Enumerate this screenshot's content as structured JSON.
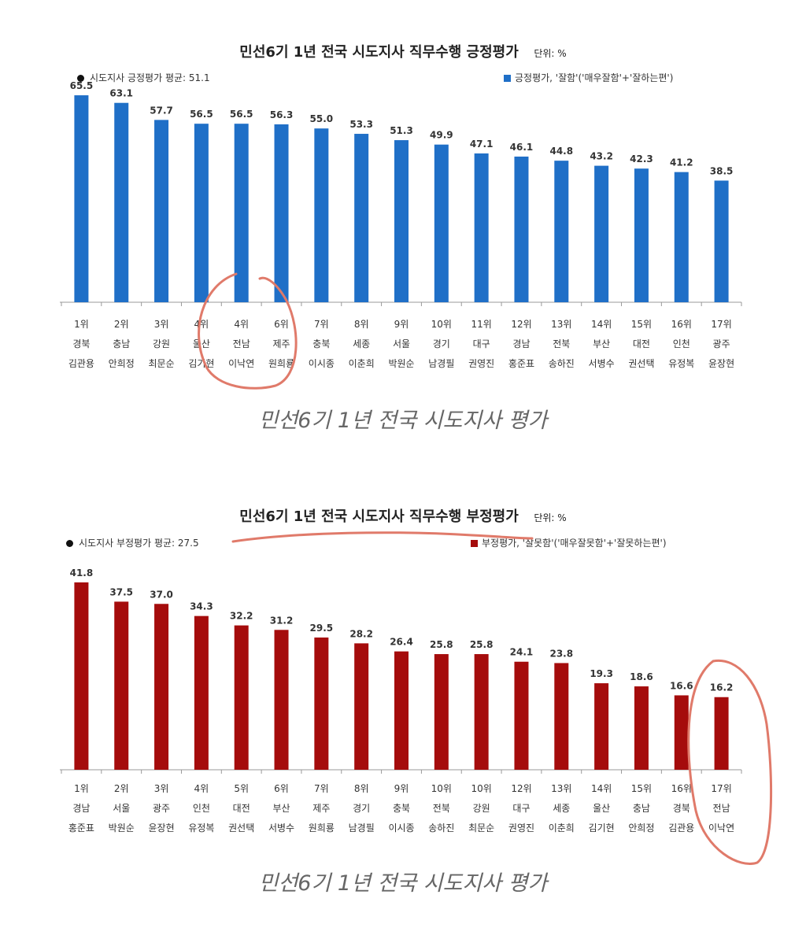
{
  "charts": [
    {
      "title": "민선6기 1년 전국 시도지사 직무수행 긍정평가",
      "unit": "단위: %",
      "legend_avg": "시도지사 긍정평가 평균: 51.1",
      "legend_series": "긍정평가, '잘함'('매우잘함'+'잘하는편')",
      "caption": "민선6기 1년 전국 시도지사 평가",
      "color": "#1f6fc7"
    },
    {
      "title": "민선6기 1년 전국 시도지사 직무수행 부정평가",
      "unit": "단위: %",
      "legend_avg": "시도지사 부정평가 평균: 27.5",
      "legend_series": "부정평가, '잘못함'('매우잘못함'+'잘못하는편')",
      "caption": "민선6기 1년 전국 시도지사 평가",
      "color": "#a50c0c"
    }
  ],
  "chart_data": [
    {
      "type": "bar",
      "title": "민선6기 1년 전국 시도지사 직무수행 긍정평가",
      "ylim": [
        0,
        70
      ],
      "legend": "top",
      "values": [
        65.5,
        63.1,
        57.7,
        56.5,
        56.5,
        56.3,
        55.0,
        53.3,
        51.3,
        49.9,
        47.1,
        46.1,
        44.8,
        43.2,
        42.3,
        41.2,
        38.5
      ],
      "value_labels": [
        "65.5",
        "63.1",
        "57.7",
        "56.5",
        "56.5",
        "56.3",
        "55.0",
        "53.3",
        "51.3",
        "49.9",
        "47.1",
        "46.1",
        "44.8",
        "43.2",
        "42.3",
        "41.2",
        "38.5"
      ],
      "ranks": [
        "1위",
        "2위",
        "3위",
        "4위",
        "4위",
        "6위",
        "7위",
        "8위",
        "9위",
        "10위",
        "11위",
        "12위",
        "13위",
        "14위",
        "15위",
        "16위",
        "17위"
      ],
      "regions": [
        "경북",
        "충남",
        "강원",
        "울산",
        "전남",
        "제주",
        "충북",
        "세종",
        "서울",
        "경기",
        "대구",
        "경남",
        "전북",
        "부산",
        "대전",
        "인천",
        "광주"
      ],
      "names": [
        "김관용",
        "안희정",
        "최문순",
        "김기현",
        "이낙연",
        "원희룡",
        "이시종",
        "이춘희",
        "박원순",
        "남경필",
        "권영진",
        "홍준표",
        "송하진",
        "서병수",
        "권선택",
        "유정복",
        "윤장현"
      ]
    },
    {
      "type": "bar",
      "title": "민선6기 1년 전국 시도지사 직무수행 부정평가",
      "ylim": [
        0,
        46
      ],
      "legend": "top",
      "values": [
        41.8,
        37.5,
        37.0,
        34.3,
        32.2,
        31.2,
        29.5,
        28.2,
        26.4,
        25.8,
        25.8,
        24.1,
        23.8,
        19.3,
        18.6,
        16.6,
        16.2
      ],
      "value_labels": [
        "41.8",
        "37.5",
        "37.0",
        "34.3",
        "32.2",
        "31.2",
        "29.5",
        "28.2",
        "26.4",
        "25.8",
        "25.8",
        "24.1",
        "23.8",
        "19.3",
        "18.6",
        "16.6",
        "16.2"
      ],
      "ranks": [
        "1위",
        "2위",
        "3위",
        "4위",
        "5위",
        "6위",
        "7위",
        "8위",
        "9위",
        "10위",
        "10위",
        "12위",
        "13위",
        "14위",
        "15위",
        "16위",
        "17위"
      ],
      "regions": [
        "경남",
        "서울",
        "광주",
        "인천",
        "대전",
        "부산",
        "제주",
        "경기",
        "충북",
        "전북",
        "강원",
        "대구",
        "세종",
        "울산",
        "충남",
        "경북",
        "전남"
      ],
      "names": [
        "홍준표",
        "박원순",
        "윤장현",
        "유정복",
        "권선택",
        "서병수",
        "원희룡",
        "남경필",
        "이시종",
        "송하진",
        "최문순",
        "권영진",
        "이춘희",
        "김기현",
        "안희정",
        "김관용",
        "이낙연"
      ]
    }
  ]
}
